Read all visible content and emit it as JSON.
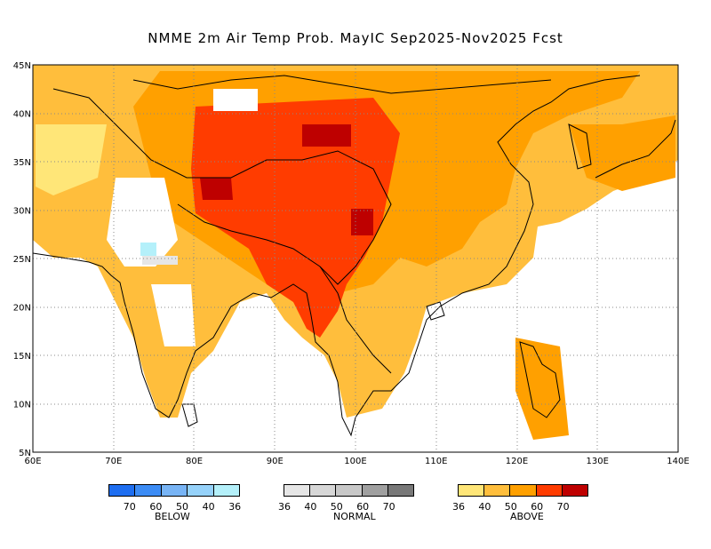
{
  "title": "NMME 2m Air Temp Prob. MayIC  Sep2025-Nov2025 Fcst",
  "map": {
    "lon_range": [
      60,
      140
    ],
    "lat_range": [
      5,
      45
    ],
    "lon_ticks": [
      "60E",
      "70E",
      "80E",
      "90E",
      "100E",
      "110E",
      "120E",
      "130E",
      "140E"
    ],
    "lat_ticks": [
      "45N",
      "40N",
      "35N",
      "30N",
      "25N",
      "20N",
      "15N",
      "10N",
      "5N"
    ],
    "grid": "dotted"
  },
  "legend": {
    "below": {
      "label": "BELOW",
      "ticks": [
        "70",
        "60",
        "50",
        "40",
        "36"
      ],
      "colors": [
        "#1e6ef0",
        "#3c8cf5",
        "#78b4f5",
        "#96d2fa",
        "#b4f0fa"
      ]
    },
    "normal": {
      "label": "NORMAL",
      "ticks": [
        "36",
        "40",
        "50",
        "60",
        "70"
      ],
      "colors": [
        "#e6e6e6",
        "#d7d7d7",
        "#c8c8c8",
        "#a0a0a0",
        "#787878"
      ]
    },
    "above": {
      "label": "ABOVE",
      "ticks": [
        "36",
        "40",
        "50",
        "60",
        "70"
      ],
      "colors": [
        "#ffe678",
        "#ffbe3c",
        "#ffa000",
        "#ff3c00",
        "#be0000"
      ]
    }
  }
}
